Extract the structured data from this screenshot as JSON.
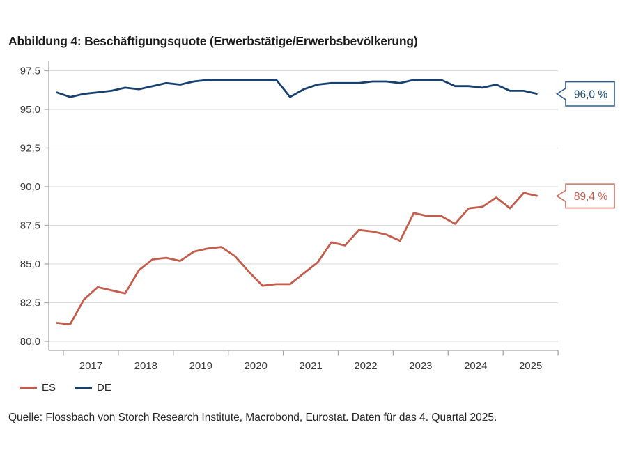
{
  "title": "Abbildung 4: Beschäftigungsquote (Erwerbstätige/Erwerbsbevölkerung)",
  "source_note": "Quelle: Flossbach von Storch Research Institute, Macrobond, Eurostat. Daten für das 4. Quartal 2025.",
  "colors": {
    "es_line": "#c45c4b",
    "de_line": "#17406f",
    "grid": "#d9d9d9",
    "axis": "#a6a6a6",
    "tick_text": "#3a3a3a"
  },
  "legend": {
    "items": [
      {
        "label": "ES",
        "color": "#c45c4b"
      },
      {
        "label": "DE",
        "color": "#17406f"
      }
    ]
  },
  "callouts": [
    {
      "series": "DE",
      "text": "96,0 %",
      "value": 96.0,
      "text_color": "#1f4e79",
      "border_color": "#2e5d8e"
    },
    {
      "series": "ES",
      "text": "89,4 %",
      "value": 89.4,
      "text_color": "#c45c4b",
      "border_color": "#c97163"
    }
  ],
  "chart_data": {
    "type": "line",
    "title": "Abbildung 4: Beschäftigungsquote (Erwerbstätige/Erwerbsbevölkerung)",
    "x_unit": "quarter",
    "x": [
      "2016 Q4",
      "2017 Q1",
      "2017 Q2",
      "2017 Q3",
      "2017 Q4",
      "2018 Q1",
      "2018 Q2",
      "2018 Q3",
      "2018 Q4",
      "2019 Q1",
      "2019 Q2",
      "2019 Q3",
      "2019 Q4",
      "2020 Q1",
      "2020 Q2",
      "2020 Q3",
      "2020 Q4",
      "2021 Q1",
      "2021 Q2",
      "2021 Q3",
      "2021 Q4",
      "2022 Q1",
      "2022 Q2",
      "2022 Q3",
      "2022 Q4",
      "2023 Q1",
      "2023 Q2",
      "2023 Q3",
      "2023 Q4",
      "2024 Q1",
      "2024 Q2",
      "2024 Q3",
      "2024 Q4",
      "2025 Q1",
      "2025 Q2",
      "2025 Q3"
    ],
    "x_tick_labels": [
      "2017",
      "2018",
      "2019",
      "2020",
      "2021",
      "2022",
      "2023",
      "2024",
      "2025"
    ],
    "yticks": [
      80.0,
      82.5,
      85.0,
      87.5,
      90.0,
      92.5,
      95.0,
      97.5
    ],
    "y_tick_labels": [
      "80,0",
      "82,5",
      "85,0",
      "87,5",
      "90,0",
      "92,5",
      "95,0",
      "97,5"
    ],
    "ylim": [
      79.4,
      98.1
    ],
    "grid": true,
    "legend_position": "bottom-left",
    "series": [
      {
        "name": "ES",
        "color": "#c45c4b",
        "values": [
          81.2,
          81.1,
          82.7,
          83.5,
          83.3,
          83.1,
          84.6,
          85.3,
          85.4,
          85.2,
          85.8,
          86.0,
          86.1,
          85.5,
          84.5,
          83.6,
          83.7,
          83.7,
          84.4,
          85.1,
          86.4,
          86.2,
          87.2,
          87.1,
          86.9,
          86.5,
          88.3,
          88.1,
          88.1,
          87.6,
          88.6,
          88.7,
          89.3,
          88.6,
          89.6,
          89.4
        ]
      },
      {
        "name": "DE",
        "color": "#17406f",
        "values": [
          96.1,
          95.8,
          96.0,
          96.1,
          96.2,
          96.4,
          96.3,
          96.5,
          96.7,
          96.6,
          96.8,
          96.9,
          96.9,
          96.9,
          96.9,
          96.9,
          96.9,
          95.8,
          96.3,
          96.6,
          96.7,
          96.7,
          96.7,
          96.8,
          96.8,
          96.7,
          96.9,
          96.9,
          96.9,
          96.5,
          96.5,
          96.4,
          96.6,
          96.2,
          96.2,
          96.0
        ]
      }
    ],
    "end_labels": {
      "DE": "96,0 %",
      "ES": "89,4 %"
    }
  }
}
